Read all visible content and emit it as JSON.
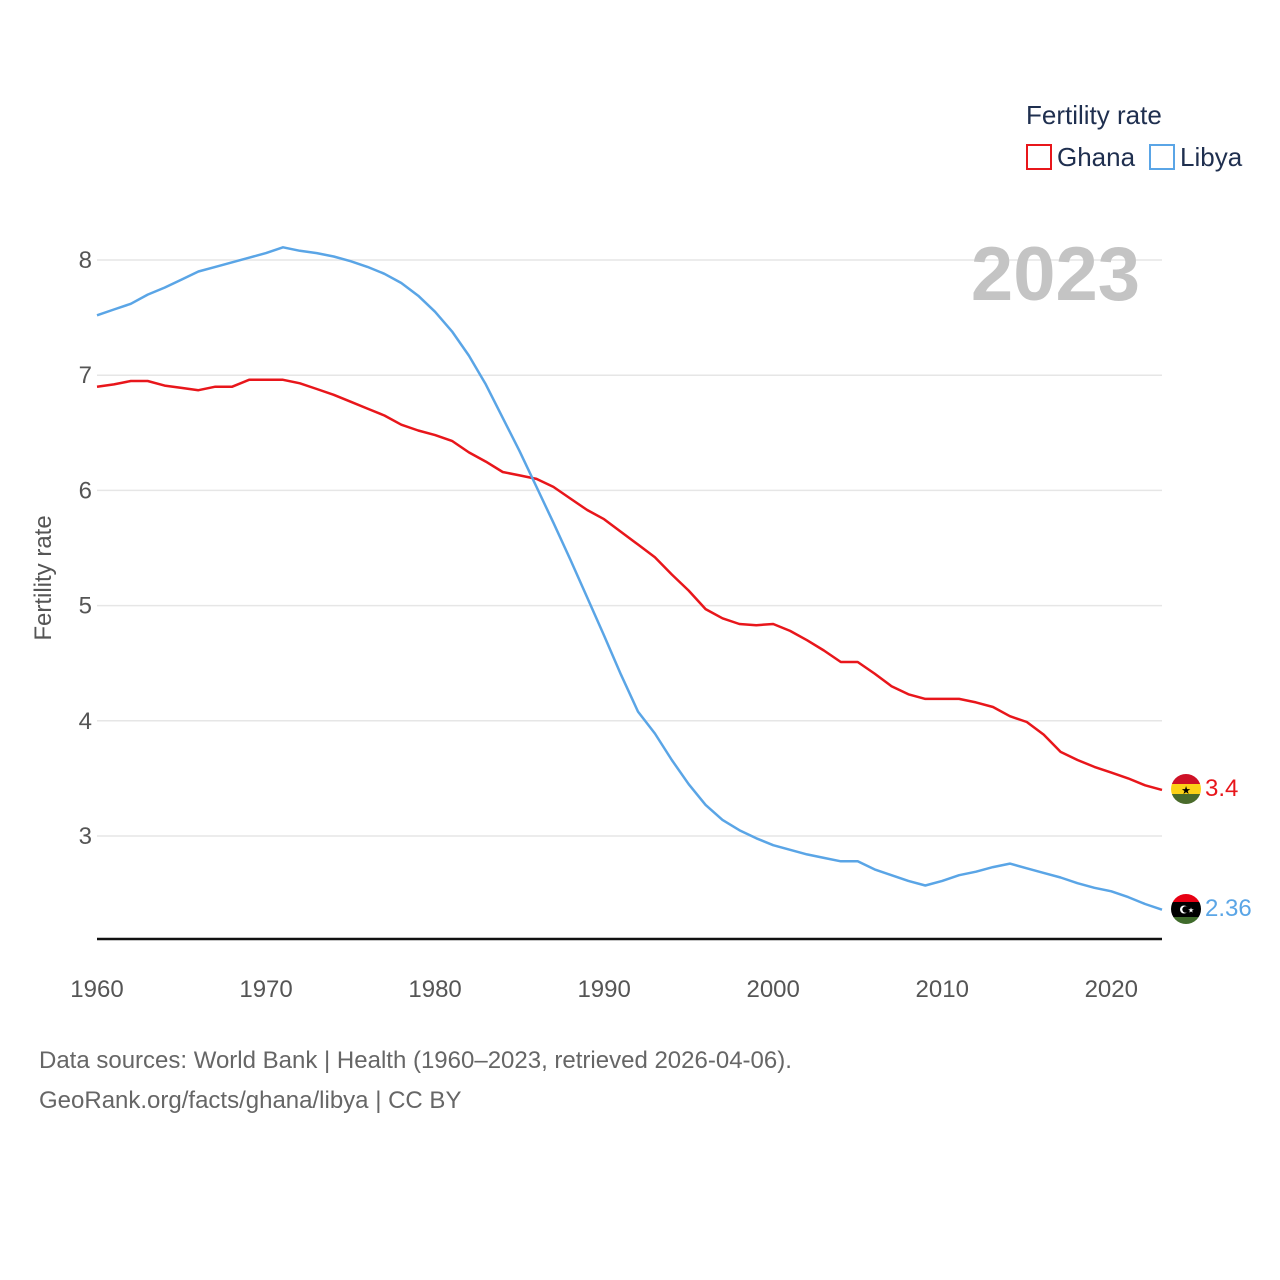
{
  "chart_data": {
    "type": "line",
    "title": "Fertility rate",
    "ylabel": "Fertility rate",
    "xlabel": "",
    "year_label": "2023",
    "xlim": [
      1960,
      2023
    ],
    "ylim": [
      2.1,
      8.3
    ],
    "x_ticks": [
      1960,
      1970,
      1980,
      1990,
      2000,
      2010,
      2020
    ],
    "y_ticks": [
      3,
      4,
      5,
      6,
      7,
      8
    ],
    "legend": {
      "title": "Fertility rate",
      "position": "top-right"
    },
    "x": [
      1960,
      1961,
      1962,
      1963,
      1964,
      1965,
      1966,
      1967,
      1968,
      1969,
      1970,
      1971,
      1972,
      1973,
      1974,
      1975,
      1976,
      1977,
      1978,
      1979,
      1980,
      1981,
      1982,
      1983,
      1984,
      1985,
      1986,
      1987,
      1988,
      1989,
      1990,
      1991,
      1992,
      1993,
      1994,
      1995,
      1996,
      1997,
      1998,
      1999,
      2000,
      2001,
      2002,
      2003,
      2004,
      2005,
      2006,
      2007,
      2008,
      2009,
      2010,
      2011,
      2012,
      2013,
      2014,
      2015,
      2016,
      2017,
      2018,
      2019,
      2020,
      2021,
      2022,
      2023
    ],
    "series": [
      {
        "name": "Ghana",
        "color": "#e8161b",
        "end_value_label": "3.4",
        "flag": "ghana-flag",
        "values": [
          6.9,
          6.92,
          6.95,
          6.95,
          6.91,
          6.89,
          6.87,
          6.9,
          6.9,
          6.96,
          6.96,
          6.96,
          6.93,
          6.88,
          6.83,
          6.77,
          6.71,
          6.65,
          6.57,
          6.52,
          6.48,
          6.43,
          6.33,
          6.25,
          6.16,
          6.13,
          6.1,
          6.03,
          5.93,
          5.83,
          5.75,
          5.64,
          5.53,
          5.42,
          5.27,
          5.13,
          4.97,
          4.89,
          4.84,
          4.83,
          4.84,
          4.78,
          4.7,
          4.61,
          4.51,
          4.51,
          4.41,
          4.3,
          4.23,
          4.19,
          4.19,
          4.19,
          4.16,
          4.12,
          4.04,
          3.99,
          3.88,
          3.73,
          3.66,
          3.6,
          3.55,
          3.5,
          3.44,
          3.4
        ]
      },
      {
        "name": "Libya",
        "color": "#5aa5e6",
        "end_value_label": "2.36",
        "flag": "libya-flag",
        "values": [
          7.52,
          7.57,
          7.62,
          7.7,
          7.76,
          7.83,
          7.9,
          7.94,
          7.98,
          8.02,
          8.06,
          8.11,
          8.08,
          8.06,
          8.03,
          7.99,
          7.94,
          7.88,
          7.8,
          7.69,
          7.55,
          7.38,
          7.17,
          6.92,
          6.63,
          6.34,
          6.03,
          5.72,
          5.4,
          5.07,
          4.74,
          4.4,
          4.08,
          3.89,
          3.66,
          3.45,
          3.27,
          3.14,
          3.05,
          2.98,
          2.92,
          2.88,
          2.84,
          2.81,
          2.78,
          2.78,
          2.71,
          2.66,
          2.61,
          2.57,
          2.61,
          2.66,
          2.69,
          2.73,
          2.76,
          2.72,
          2.68,
          2.64,
          2.59,
          2.55,
          2.52,
          2.47,
          2.41,
          2.36
        ]
      }
    ]
  },
  "footer": {
    "source_line": "Data sources: World Bank | Health (1960–2023, retrieved 2026-04-06).",
    "credit_line": "GeoRank.org/facts/ghana/libya | CC BY"
  }
}
